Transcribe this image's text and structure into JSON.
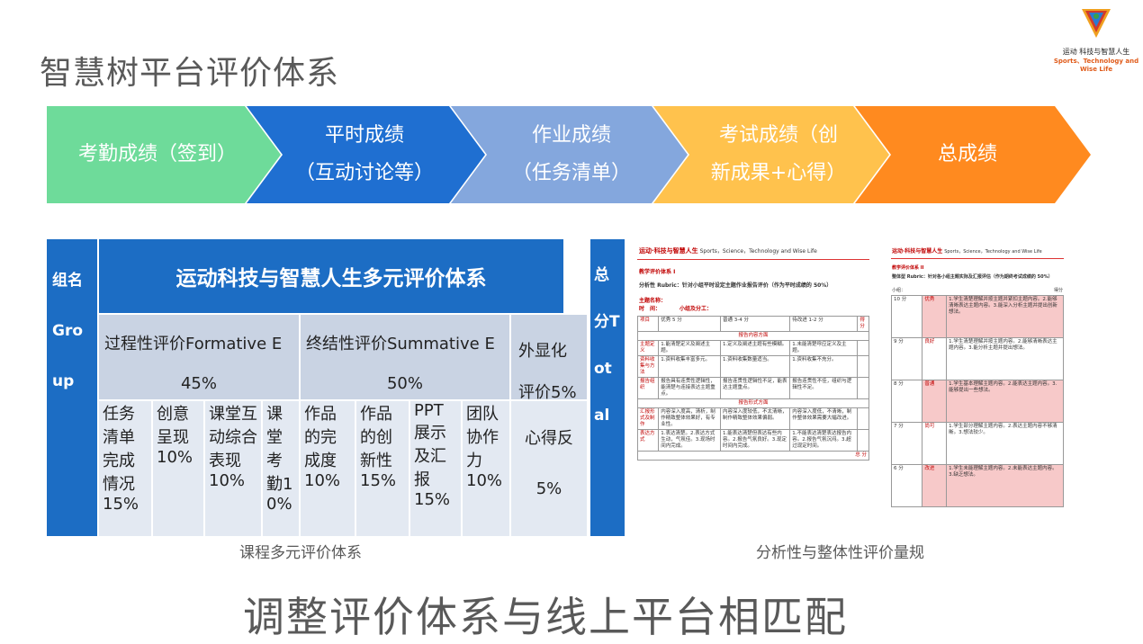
{
  "title": "智慧树平台评价体系",
  "logo": {
    "cn": "运动 科技与智慧人生",
    "en": "Sports、Technology and Wise Life"
  },
  "flow": [
    {
      "line1": "考勤成绩（签到）",
      "line2": "",
      "color": "#6edb9a"
    },
    {
      "line1": "平时成绩",
      "line2": "（互动讨论等）",
      "color": "#1f6fd1"
    },
    {
      "line1": "作业成绩",
      "line2": "（任务清单）",
      "color": "#84a7dd"
    },
    {
      "line1": "考试成绩（创",
      "line2": "新成果+心得）",
      "color": "#ffc24d"
    },
    {
      "line1": "总成绩",
      "line2": "",
      "color": "#ff8a1f"
    }
  ],
  "table": {
    "group_col": "组名Group",
    "main_title": "运动科技与智慧人生多元评价体系",
    "total_col": "总分Total",
    "process": {
      "label": "过程性评价Formative E",
      "pct": "45%"
    },
    "summative": {
      "label": "终结性评价Summative E",
      "pct": "50%"
    },
    "explicit": {
      "label": "外显化评价5%"
    },
    "items": [
      {
        "label": "任务清单完成情况",
        "pct": "15%"
      },
      {
        "label": "创意呈现",
        "pct": "10%"
      },
      {
        "label": "课堂互动综合表现",
        "pct": "10%"
      },
      {
        "label": "课堂考勤",
        "pct": "10%"
      },
      {
        "label": "作品的完成度",
        "pct": "10%"
      },
      {
        "label": "作品的创新性",
        "pct": "15%"
      },
      {
        "label": "PPT展示及汇报",
        "pct": "15%"
      },
      {
        "label": "团队协作力",
        "pct": "10%"
      },
      {
        "label": "心得反",
        "pct": "5%"
      }
    ]
  },
  "caption_left": "课程多元评价体系",
  "caption_right": "分析性与整体性评价量规",
  "bottom_title": "调整评价体系与线上平台相匹配",
  "rubric_a": {
    "header": "运动·科技与智慧人生",
    "header_en": "Sports，Science，Technology and Wise Life",
    "sub": "教学评价体系 I",
    "desc": "分析性 Rubric：针对小组平时设定主题作业报告评价（作为平时成绩的 50%）",
    "name_label": "主题名称：",
    "time_label": "时　间：",
    "group_label": "小组及分工：",
    "cols": [
      "项目",
      "优秀 5 分",
      "普通 3-4 分",
      "待改进 1-2 分",
      "得分"
    ],
    "section1": "报告内容方面",
    "section2": "报告形式方面",
    "rows": [
      {
        "k": "主题定义",
        "a": "1.能清楚定义及阐述主题。",
        "b": "1.定义及阐述主题有些模糊。",
        "c": "1.未能清楚呼应定义及主题。"
      },
      {
        "k": "资料收集与方法",
        "a": "1.资料收集丰富多元。",
        "b": "1.资料收集数量适当。",
        "c": "1.资料收集不充分。"
      },
      {
        "k": "报告组织",
        "a": "报告具有连贯性逻辑性，能清楚与连接表达主题重点。",
        "b": "报告连贯性逻辑性不足，能表达主题重点。",
        "c": "报告连贯性不佳，组织与逻辑性不足。"
      },
      {
        "k": "汇报形式及制作",
        "a": "内容深入度高，清析，制作精致整体效果好，有专业性。",
        "b": "内容深入度较低，不太清晰，制作精致整体效果偏弱。",
        "c": "内容深入度低，不清晰，制作整体效果需要大幅改进。"
      },
      {
        "k": "表达方式",
        "a": "1.表达清楚。2.表达方式生动，气氛佳。3.现场时间内完成。",
        "b": "1.能表达清楚但表达有些内容。2.报告气氛良好。3.现定时间内完成。",
        "c": "1.不能表达清楚表达报告内容。2.报告气氛沉闷。3.超过现定时间。"
      }
    ],
    "total": "总 分"
  },
  "rubric_b": {
    "header": "运动·科技与智慧人生",
    "header_en": "Sports，Science，Technology and Wise Life",
    "sub": "教学评价体系 II",
    "desc": "整体型 Rubric：针对各小组主题实际及汇报评估（作为期终考试成绩的 50%）",
    "group_label": "小组：",
    "score_label": "得分",
    "rows": [
      {
        "score": "10 分",
        "level": "优秀",
        "text": "1.学生清楚理解并按主题并紧扣主题内容。2.能够清晰表达主题内容。3.能深入分析主题并提出创新想法。",
        "pink": true
      },
      {
        "score": "9 分",
        "level": "良好",
        "text": "1.学生清楚理解并按主题内容。2.能够清晰表达主题内容。3.能分析主题并提出想法。",
        "pink": false
      },
      {
        "score": "8 分",
        "level": "普通",
        "text": "1.学生基本理解主题内容。2.能表达主题内容。3.能够提出一些想法。",
        "pink": true
      },
      {
        "score": "7 分",
        "level": "尚可",
        "text": "1.学生部分理解主题内容。2.表达主题内容不够清晰。3.想法较少。",
        "pink": false
      },
      {
        "score": "6 分",
        "level": "改进",
        "text": "1.学生未能理解主题内容。2.未能表达主题内容。3.缺乏想法。",
        "pink": true
      }
    ]
  }
}
